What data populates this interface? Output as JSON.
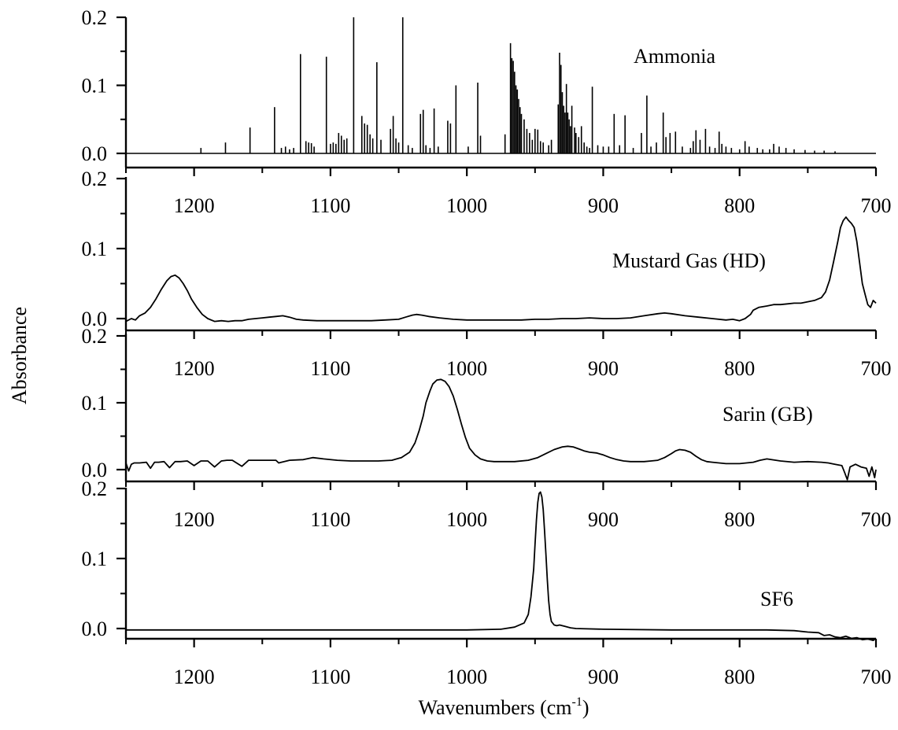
{
  "figure": {
    "ylabel": "Absorbance",
    "xlabel_main": "Wavenumbers (cm",
    "xlabel_sup": "-1",
    "xlabel_close": ")"
  },
  "colors": {
    "line": "#000000",
    "axis": "#000000",
    "background": "#ffffff"
  },
  "chart_data": [
    {
      "type": "line",
      "series": [
        {
          "name": "Ammonia",
          "kind": "sticks"
        }
      ],
      "title": "Ammonia",
      "xlabel": "",
      "ylabel": "Absorbance",
      "xlim": [
        1250,
        700
      ],
      "ylim": [
        0,
        0.2
      ],
      "x_ticks": [
        1200,
        1100,
        1000,
        900,
        800,
        700
      ],
      "y_ticks": [
        0.0,
        0.1,
        0.2
      ],
      "x_tick_labels": [
        "1200",
        "1100",
        "1000",
        "900",
        "800",
        "700"
      ],
      "y_tick_labels": [
        "0.0",
        "0.1",
        "0.2"
      ],
      "baseline": 0.0,
      "x": [
        1195,
        1177,
        1159,
        1141,
        1136,
        1133,
        1130,
        1127,
        1122,
        1118,
        1116,
        1114,
        1112,
        1103,
        1100,
        1098,
        1096,
        1094,
        1092,
        1090,
        1088,
        1083,
        1077,
        1075,
        1073,
        1071,
        1069,
        1066,
        1063,
        1056,
        1054,
        1052,
        1050,
        1047,
        1043,
        1040,
        1034,
        1032,
        1030,
        1027,
        1024,
        1021,
        1014,
        1012,
        1008,
        999,
        992,
        990,
        972,
        968,
        967,
        966,
        965,
        964,
        963,
        962,
        961,
        960,
        958,
        956,
        954,
        952,
        950,
        948,
        946,
        944,
        940,
        938,
        933,
        932,
        931,
        930,
        929,
        928,
        927,
        926,
        925,
        924,
        923,
        921,
        920,
        918,
        916,
        914,
        912,
        910,
        908,
        904,
        900,
        896,
        892,
        888,
        884,
        878,
        872,
        868,
        865,
        861,
        856,
        854,
        851,
        847,
        842,
        836,
        834,
        832,
        829,
        825,
        822,
        818,
        815,
        813,
        810,
        806,
        800,
        796,
        793,
        787,
        783,
        778,
        775,
        771,
        766,
        760,
        752,
        745,
        738,
        730
      ],
      "y": [
        0.008,
        0.016,
        0.038,
        0.068,
        0.008,
        0.01,
        0.006,
        0.008,
        0.146,
        0.018,
        0.016,
        0.015,
        0.01,
        0.142,
        0.014,
        0.016,
        0.014,
        0.03,
        0.026,
        0.02,
        0.022,
        0.2,
        0.055,
        0.044,
        0.042,
        0.028,
        0.022,
        0.134,
        0.02,
        0.036,
        0.055,
        0.022,
        0.016,
        0.2,
        0.012,
        0.008,
        0.058,
        0.064,
        0.012,
        0.008,
        0.066,
        0.01,
        0.048,
        0.044,
        0.1,
        0.01,
        0.104,
        0.026,
        0.028,
        0.162,
        0.14,
        0.136,
        0.12,
        0.1,
        0.094,
        0.08,
        0.068,
        0.058,
        0.05,
        0.036,
        0.03,
        0.02,
        0.036,
        0.035,
        0.018,
        0.016,
        0.012,
        0.02,
        0.072,
        0.148,
        0.13,
        0.09,
        0.07,
        0.06,
        0.102,
        0.06,
        0.05,
        0.04,
        0.07,
        0.038,
        0.03,
        0.024,
        0.04,
        0.016,
        0.01,
        0.008,
        0.098,
        0.012,
        0.01,
        0.01,
        0.058,
        0.012,
        0.056,
        0.008,
        0.03,
        0.085,
        0.01,
        0.016,
        0.06,
        0.024,
        0.03,
        0.032,
        0.01,
        0.008,
        0.018,
        0.034,
        0.02,
        0.036,
        0.01,
        0.008,
        0.032,
        0.014,
        0.01,
        0.008,
        0.006,
        0.018,
        0.01,
        0.008,
        0.006,
        0.006,
        0.014,
        0.01,
        0.008,
        0.006,
        0.005,
        0.004,
        0.004,
        0.003
      ]
    },
    {
      "type": "line",
      "series": [
        {
          "name": "Mustard Gas (HD)"
        }
      ],
      "title": "Mustard Gas (HD)",
      "xlabel": "",
      "ylabel": "Absorbance",
      "xlim": [
        1250,
        700
      ],
      "ylim": [
        0,
        0.2
      ],
      "x_ticks": [
        1200,
        1100,
        1000,
        900,
        800,
        700
      ],
      "y_ticks": [
        0.0,
        0.1,
        0.2
      ],
      "x_tick_labels": [
        "1200",
        "1100",
        "1000",
        "900",
        "800",
        "700"
      ],
      "y_tick_labels": [
        "0.0",
        "0.1",
        "0.2"
      ],
      "x": [
        1250,
        1246,
        1243,
        1240,
        1236,
        1232,
        1228,
        1224,
        1220,
        1217,
        1214,
        1211,
        1208,
        1205,
        1202,
        1198,
        1194,
        1190,
        1185,
        1180,
        1175,
        1170,
        1165,
        1160,
        1155,
        1150,
        1145,
        1140,
        1135,
        1130,
        1125,
        1120,
        1110,
        1100,
        1090,
        1080,
        1070,
        1060,
        1050,
        1045,
        1040,
        1037,
        1033,
        1028,
        1020,
        1010,
        1000,
        990,
        980,
        970,
        960,
        950,
        940,
        930,
        920,
        910,
        900,
        890,
        880,
        870,
        860,
        855,
        850,
        840,
        830,
        820,
        810,
        805,
        800,
        796,
        792,
        790,
        786,
        780,
        775,
        770,
        765,
        760,
        755,
        750,
        745,
        740,
        737,
        734,
        731,
        728,
        726,
        724,
        722,
        720,
        718,
        716,
        714,
        712,
        710,
        708,
        706,
        704,
        702,
        700
      ],
      "y": [
        -0.004,
        0.0,
        -0.002,
        0.004,
        0.008,
        0.016,
        0.028,
        0.042,
        0.054,
        0.06,
        0.062,
        0.058,
        0.05,
        0.04,
        0.028,
        0.016,
        0.006,
        0.0,
        -0.004,
        -0.003,
        -0.004,
        -0.003,
        -0.003,
        -0.001,
        0.0,
        0.001,
        0.002,
        0.003,
        0.004,
        0.002,
        -0.001,
        -0.002,
        -0.003,
        -0.003,
        -0.003,
        -0.003,
        -0.003,
        -0.002,
        -0.001,
        0.002,
        0.005,
        0.006,
        0.005,
        0.003,
        0.001,
        -0.001,
        -0.002,
        -0.002,
        -0.002,
        -0.002,
        -0.002,
        -0.001,
        -0.001,
        0.0,
        0.0,
        0.001,
        0.0,
        0.0,
        0.001,
        0.004,
        0.007,
        0.008,
        0.007,
        0.004,
        0.002,
        0.0,
        -0.002,
        -0.001,
        -0.003,
        0.0,
        0.006,
        0.012,
        0.016,
        0.018,
        0.02,
        0.02,
        0.021,
        0.022,
        0.022,
        0.024,
        0.026,
        0.03,
        0.038,
        0.055,
        0.082,
        0.11,
        0.13,
        0.14,
        0.145,
        0.14,
        0.136,
        0.13,
        0.11,
        0.08,
        0.05,
        0.035,
        0.02,
        0.016,
        0.026,
        0.022
      ]
    },
    {
      "type": "line",
      "series": [
        {
          "name": "Sarin (GB)"
        }
      ],
      "title": "Sarin (GB)",
      "xlabel": "",
      "ylabel": "Absorbance",
      "xlim": [
        1250,
        700
      ],
      "ylim": [
        0,
        0.2
      ],
      "x_ticks": [
        1200,
        1100,
        1000,
        900,
        800,
        700
      ],
      "y_ticks": [
        0.0,
        0.1,
        0.2
      ],
      "x_tick_labels": [
        "1200",
        "1100",
        "1000",
        "900",
        "800",
        "700"
      ],
      "y_tick_labels": [
        "0.0",
        "0.1",
        "0.2"
      ],
      "x": [
        1250,
        1248,
        1246,
        1244,
        1240,
        1235,
        1232,
        1229,
        1226,
        1222,
        1218,
        1214,
        1210,
        1205,
        1200,
        1195,
        1190,
        1185,
        1180,
        1176,
        1172,
        1165,
        1160,
        1150,
        1140,
        1138,
        1130,
        1120,
        1113,
        1105,
        1095,
        1085,
        1075,
        1065,
        1055,
        1048,
        1042,
        1038,
        1035,
        1032,
        1030,
        1027,
        1025,
        1022,
        1019,
        1016,
        1013,
        1010,
        1007,
        1004,
        1001,
        998,
        994,
        990,
        985,
        980,
        975,
        965,
        955,
        948,
        942,
        936,
        930,
        926,
        922,
        918,
        914,
        910,
        905,
        900,
        895,
        890,
        885,
        880,
        875,
        870,
        865,
        860,
        855,
        850,
        847,
        844,
        840,
        836,
        832,
        828,
        824,
        820,
        815,
        810,
        800,
        790,
        785,
        780,
        770,
        760,
        750,
        740,
        735,
        730,
        725,
        723,
        721,
        719,
        715,
        711,
        707,
        705,
        703,
        701,
        700
      ],
      "y": [
        0.01,
        -0.002,
        0.008,
        0.01,
        0.01,
        0.011,
        0.002,
        0.011,
        0.011,
        0.012,
        0.003,
        0.012,
        0.012,
        0.013,
        0.006,
        0.013,
        0.013,
        0.004,
        0.013,
        0.014,
        0.014,
        0.005,
        0.014,
        0.014,
        0.014,
        0.01,
        0.014,
        0.015,
        0.018,
        0.016,
        0.014,
        0.013,
        0.013,
        0.013,
        0.014,
        0.018,
        0.026,
        0.04,
        0.058,
        0.08,
        0.1,
        0.118,
        0.128,
        0.134,
        0.135,
        0.132,
        0.124,
        0.11,
        0.09,
        0.068,
        0.048,
        0.032,
        0.022,
        0.016,
        0.013,
        0.012,
        0.012,
        0.012,
        0.014,
        0.018,
        0.024,
        0.03,
        0.034,
        0.035,
        0.034,
        0.031,
        0.028,
        0.026,
        0.025,
        0.022,
        0.018,
        0.015,
        0.013,
        0.012,
        0.012,
        0.012,
        0.013,
        0.014,
        0.018,
        0.024,
        0.028,
        0.03,
        0.029,
        0.026,
        0.02,
        0.015,
        0.012,
        0.011,
        0.01,
        0.009,
        0.009,
        0.011,
        0.014,
        0.016,
        0.013,
        0.011,
        0.012,
        0.011,
        0.01,
        0.008,
        0.006,
        -0.004,
        -0.015,
        0.004,
        0.008,
        0.004,
        0.002,
        -0.01,
        0.004,
        -0.012,
        0.0
      ]
    },
    {
      "type": "line",
      "series": [
        {
          "name": "SF6"
        }
      ],
      "title": "SF6",
      "xlabel": "Wavenumbers (cm-1)",
      "ylabel": "Absorbance",
      "xlim": [
        1250,
        700
      ],
      "ylim": [
        0,
        0.2
      ],
      "x_ticks": [
        1200,
        1100,
        1000,
        900,
        800,
        700
      ],
      "y_ticks": [
        0.0,
        0.1,
        0.2
      ],
      "x_tick_labels": [
        "1200",
        "1100",
        "1000",
        "900",
        "800",
        "700"
      ],
      "y_tick_labels": [
        "0.0",
        "0.1",
        "0.2"
      ],
      "x": [
        1250,
        1200,
        1150,
        1100,
        1050,
        1000,
        975,
        965,
        958,
        955,
        953,
        951,
        950,
        949,
        948,
        947,
        946,
        945,
        944,
        943,
        942,
        941,
        940,
        939,
        938,
        936,
        934,
        932,
        928,
        924,
        920,
        900,
        850,
        800,
        780,
        760,
        750,
        742,
        738,
        734,
        730,
        726,
        722,
        718,
        714,
        710,
        706,
        702,
        700
      ],
      "y": [
        -0.002,
        -0.002,
        -0.002,
        -0.002,
        -0.002,
        -0.002,
        -0.001,
        0.002,
        0.008,
        0.02,
        0.045,
        0.085,
        0.12,
        0.155,
        0.18,
        0.193,
        0.195,
        0.188,
        0.17,
        0.14,
        0.105,
        0.07,
        0.04,
        0.02,
        0.01,
        0.005,
        0.004,
        0.005,
        0.003,
        0.001,
        0.0,
        -0.001,
        -0.002,
        -0.002,
        -0.002,
        -0.003,
        -0.005,
        -0.006,
        -0.01,
        -0.009,
        -0.012,
        -0.013,
        -0.011,
        -0.014,
        -0.013,
        -0.016,
        -0.015,
        -0.017,
        -0.014
      ]
    }
  ]
}
